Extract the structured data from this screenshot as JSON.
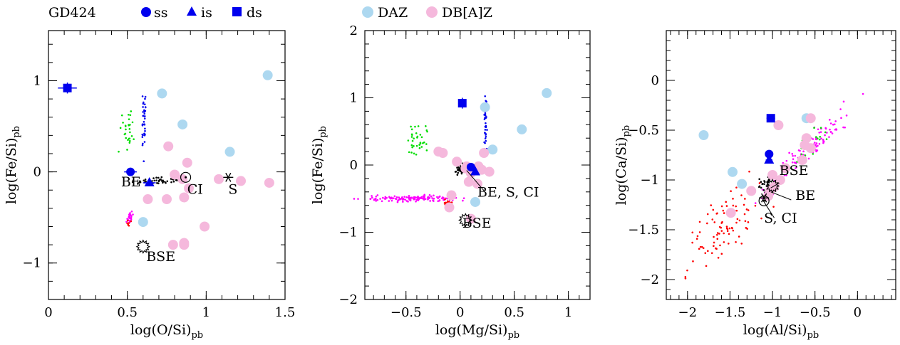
{
  "legend_top": {
    "object": "GD424",
    "items": [
      {
        "marker": "circle",
        "label": "ss",
        "color": "#0000ee"
      },
      {
        "marker": "triangle",
        "label": "is",
        "color": "#0000ee"
      },
      {
        "marker": "square",
        "label": "ds",
        "color": "#0000ee"
      },
      {
        "marker": "circle",
        "label": "DAZ",
        "color": "#add8f0"
      },
      {
        "marker": "circle",
        "label": "DB[A]Z",
        "color": "#f5b8dc"
      }
    ]
  },
  "colors": {
    "gd424": "#0000ee",
    "daz": "#add8f0",
    "dbaz": "#f5b8dc",
    "magenta": "#ff00ff",
    "red": "#ff0000",
    "green": "#00dd00",
    "black": "#000000"
  },
  "chart_data": [
    {
      "type": "scatter",
      "xlabel": "log(O/Si)pb",
      "ylabel": "log(Fe/Si)pb",
      "xlim": [
        0,
        1.5
      ],
      "ylim": [
        -1.4,
        1.55
      ],
      "xticks": [
        0,
        0.5,
        1,
        1.5
      ],
      "xtick_labels": [
        "0",
        "0.5",
        "1",
        "1.5"
      ],
      "yticks": [
        -1,
        0,
        1
      ],
      "ytick_labels": [
        "−1",
        "0",
        "1"
      ],
      "series": [
        {
          "name": "DAZ",
          "color": "daz",
          "marker": "circle",
          "x": [
            0.72,
            0.85,
            1.15,
            1.39,
            0.6
          ],
          "y": [
            0.86,
            0.52,
            0.22,
            1.06,
            -0.55
          ]
        },
        {
          "name": "DB[A]Z",
          "color": "dbaz",
          "marker": "circle",
          "x": [
            0.76,
            0.8,
            0.85,
            0.89,
            0.86,
            0.88,
            0.99,
            0.86,
            1.08,
            1.22,
            1.4,
            0.79,
            0.86,
            0.63,
            0.75
          ],
          "y": [
            0.28,
            -0.03,
            -0.08,
            -0.18,
            -0.28,
            0.1,
            -0.6,
            -0.8,
            -0.08,
            -0.1,
            -0.12,
            -0.8,
            -0.78,
            -0.3,
            -0.3
          ]
        },
        {
          "name": "ss",
          "color": "gd424",
          "marker": "circle",
          "x": [
            0.52
          ],
          "y": [
            0.0
          ],
          "xerr": 0.04
        },
        {
          "name": "is",
          "color": "gd424",
          "marker": "triangle",
          "x": [
            0.64
          ],
          "y": [
            -0.12
          ],
          "xerr": 0.04
        },
        {
          "name": "ds",
          "color": "gd424",
          "marker": "square",
          "x": [
            0.12
          ],
          "y": [
            0.92
          ],
          "xerr": 0.06,
          "yerr": 0.06
        }
      ],
      "annotations": [
        {
          "text": "BE",
          "x": 0.46,
          "y": -0.16
        },
        {
          "text": "CI",
          "x": 0.88,
          "y": -0.24
        },
        {
          "text": "S",
          "x": 1.14,
          "y": -0.24
        },
        {
          "text": "BSE",
          "x": 0.62,
          "y": -0.98
        }
      ],
      "symbols": [
        {
          "kind": "odot",
          "x": 0.87,
          "y": -0.06
        },
        {
          "kind": "star",
          "x": 1.14,
          "y": -0.06
        },
        {
          "kind": "sun",
          "x": 0.6,
          "y": -0.82
        }
      ]
    },
    {
      "type": "scatter",
      "xlabel": "log(Mg/Si)pb",
      "ylabel": "log(Fe/Si)pb",
      "xlim": [
        -0.88,
        1.2
      ],
      "ylim": [
        -2,
        2
      ],
      "xticks": [
        -0.5,
        0,
        0.5,
        1
      ],
      "xtick_labels": [
        "−0.5",
        "0",
        "0.5",
        "1"
      ],
      "yticks": [
        -2,
        -1,
        0,
        1,
        2
      ],
      "ytick_labels": [
        "−2",
        "−1",
        "0",
        "1",
        "2"
      ],
      "series": [
        {
          "name": "DAZ",
          "color": "daz",
          "marker": "circle",
          "x": [
            0.23,
            0.3,
            0.57,
            0.8,
            0.14
          ],
          "y": [
            0.86,
            0.23,
            0.53,
            1.07,
            -0.55
          ]
        },
        {
          "name": "DB[A]Z",
          "color": "dbaz",
          "marker": "circle",
          "x": [
            -0.16,
            0.05,
            0.1,
            0.17,
            0.2,
            0.22,
            0.1,
            -0.1,
            0.08,
            0.27,
            -0.08,
            -0.2,
            0.16,
            0.06,
            -0.03
          ],
          "y": [
            0.18,
            -0.05,
            -0.12,
            -0.02,
            -0.07,
            0.18,
            -0.8,
            -0.63,
            -0.25,
            -0.1,
            -0.45,
            0.2,
            -0.28,
            -0.02,
            0.05
          ]
        },
        {
          "name": "ss",
          "color": "gd424",
          "marker": "circle",
          "x": [
            0.1
          ],
          "y": [
            -0.03
          ]
        },
        {
          "name": "is",
          "color": "gd424",
          "marker": "triangle",
          "x": [
            0.14
          ],
          "y": [
            -0.1
          ]
        },
        {
          "name": "ds",
          "color": "gd424",
          "marker": "square",
          "x": [
            0.02
          ],
          "y": [
            0.92
          ],
          "yerr": 0.08
        }
      ],
      "annotations": [
        {
          "text": "BE, S, CI",
          "x": 0.16,
          "y": -0.47
        },
        {
          "text": "BSE",
          "x": 0.02,
          "y": -0.93
        }
      ],
      "symbols": [
        {
          "kind": "sun",
          "x": 0.05,
          "y": -0.82
        }
      ]
    },
    {
      "type": "scatter",
      "xlabel": "log(Al/Si)pb",
      "ylabel": "log(Ca/Si)pb",
      "xlim": [
        -2.25,
        0.45
      ],
      "ylim": [
        -2.2,
        0.5
      ],
      "xticks": [
        -2,
        -1.5,
        -1,
        -0.5,
        0
      ],
      "xtick_labels": [
        "−2",
        "−1.5",
        "−1",
        "−0.5",
        "0"
      ],
      "yticks": [
        -2,
        -1.5,
        -1,
        -0.5,
        0
      ],
      "ytick_labels": [
        "−2",
        "−1.5",
        "−1",
        "−0.5",
        "0"
      ],
      "series": [
        {
          "name": "DAZ",
          "color": "daz",
          "marker": "circle",
          "x": [
            -1.81,
            -1.47,
            -1.36,
            -0.6
          ],
          "y": [
            -0.55,
            -0.92,
            -1.04,
            -0.38
          ]
        },
        {
          "name": "DB[A]Z",
          "color": "dbaz",
          "marker": "circle",
          "x": [
            -0.55,
            -0.93,
            -0.6,
            -0.65,
            -0.55,
            -0.85,
            -0.91,
            -0.98,
            -1.03,
            -1.05,
            -1.49,
            -1.25,
            -1.0,
            -0.62
          ],
          "y": [
            -0.38,
            -0.45,
            -0.58,
            -0.8,
            -0.68,
            -0.88,
            -1.0,
            -1.07,
            -1.11,
            -1.16,
            -1.33,
            -1.11,
            -0.95,
            -0.65
          ]
        },
        {
          "name": "ss",
          "color": "gd424",
          "marker": "circle",
          "x": [
            -1.04
          ],
          "y": [
            -0.74
          ],
          "xerr": 0.04
        },
        {
          "name": "is",
          "color": "gd424",
          "marker": "triangle",
          "x": [
            -1.04
          ],
          "y": [
            -0.8
          ],
          "xerr": 0.04
        },
        {
          "name": "ds",
          "color": "gd424",
          "marker": "square",
          "x": [
            -1.02
          ],
          "y": [
            -0.38
          ],
          "xerr": 0.05
        }
      ],
      "annotations": [
        {
          "text": "BSE",
          "x": -0.92,
          "y": -0.95
        },
        {
          "text": "BE",
          "x": -0.73,
          "y": -1.2
        },
        {
          "text": "S, CI",
          "x": -1.1,
          "y": -1.43
        }
      ],
      "symbols": [
        {
          "kind": "sun",
          "x": -1.0,
          "y": -1.06
        },
        {
          "kind": "star",
          "x": -1.1,
          "y": -1.18
        },
        {
          "kind": "odot",
          "x": -1.1,
          "y": -1.21
        }
      ]
    }
  ]
}
